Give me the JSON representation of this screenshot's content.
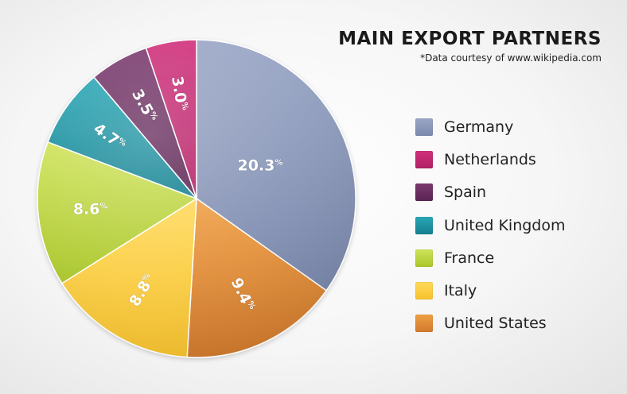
{
  "chart_data": {
    "type": "pie",
    "title": "MAIN EXPORT PARTNERS",
    "subtitle": "*Data courtesy of www.wikipedia.com",
    "slices": [
      {
        "label": "Germany",
        "value": 20.3,
        "display": "20.3",
        "color": "#9aa7c6",
        "color_dark": "#7b89ad"
      },
      {
        "label": "United States",
        "value": 9.4,
        "display": "9.4",
        "color": "#ee9f45",
        "color_dark": "#d27a2c"
      },
      {
        "label": "Italy",
        "value": 8.8,
        "display": "8.8",
        "color": "#ffd95a",
        "color_dark": "#f7c22d"
      },
      {
        "label": "France",
        "value": 8.6,
        "display": "8.6",
        "color": "#cfe35a",
        "color_dark": "#a9c62a"
      },
      {
        "label": "United Kingdom",
        "value": 4.7,
        "display": "4.7",
        "color": "#2aa7b5",
        "color_dark": "#147f8f"
      },
      {
        "label": "Spain",
        "value": 3.5,
        "display": "3.5",
        "color": "#7a3a6e",
        "color_dark": "#5a2452"
      },
      {
        "label": "Netherlands",
        "value": 3.0,
        "display": "3.0",
        "color": "#d0307a",
        "color_dark": "#b01f64"
      }
    ],
    "legend_order": [
      "Germany",
      "Netherlands",
      "Spain",
      "United Kingdom",
      "France",
      "Italy",
      "United States"
    ],
    "percent_sign": "%",
    "legend_position": "right"
  }
}
